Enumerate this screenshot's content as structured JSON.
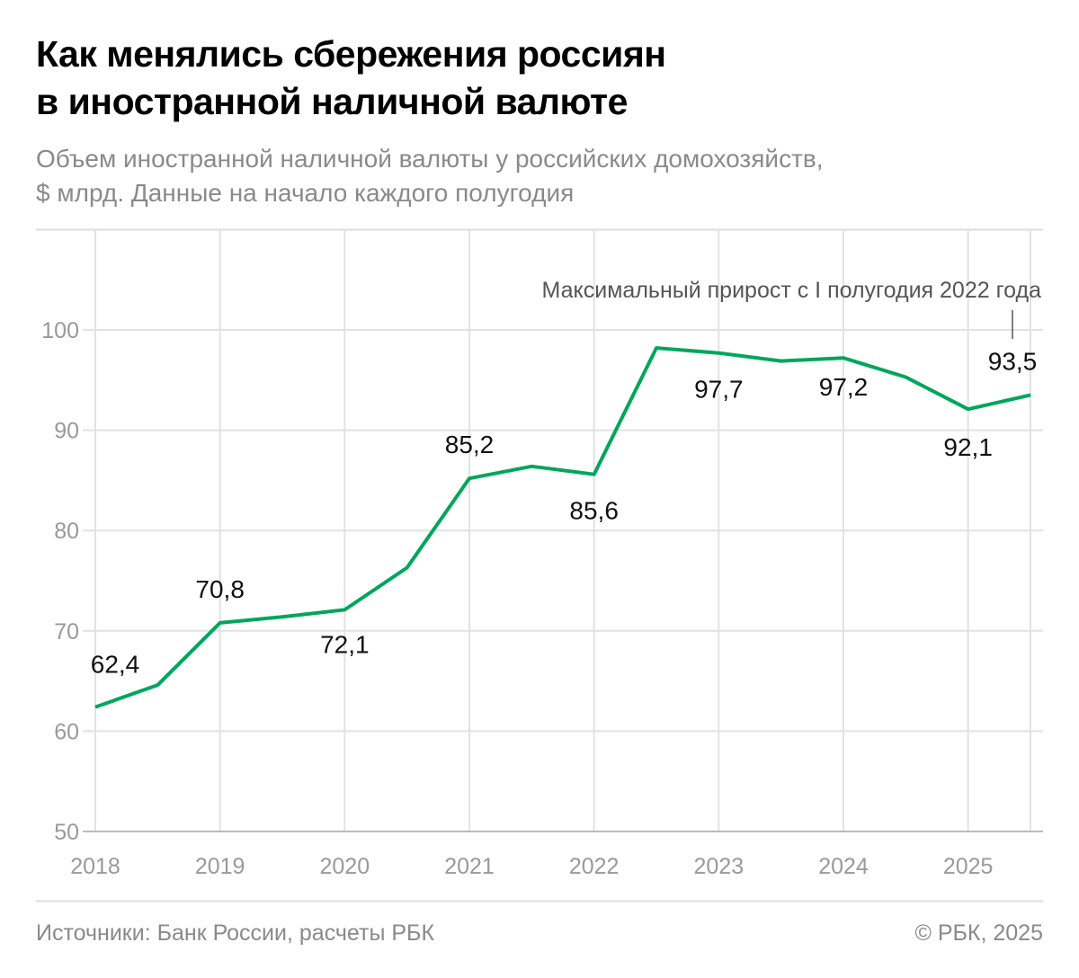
{
  "title_lines": [
    "Как менялись сбережения россиян",
    "в иностранной наличной валюте"
  ],
  "subtitle_lines": [
    "Объем иностранной наличной валюты у российских домохозяйств,",
    "$ млрд. Данные на начало каждого полугодия"
  ],
  "chart_data": {
    "type": "line",
    "x": [
      2018.0,
      2018.5,
      2019.0,
      2019.5,
      2020.0,
      2020.5,
      2021.0,
      2021.5,
      2022.0,
      2022.5,
      2023.0,
      2023.5,
      2024.0,
      2024.5,
      2025.0,
      2025.5
    ],
    "values": [
      62.4,
      64.6,
      70.8,
      71.4,
      72.1,
      76.3,
      85.2,
      86.4,
      85.6,
      98.2,
      97.7,
      96.9,
      97.2,
      95.3,
      92.1,
      93.5
    ],
    "data_labels": [
      {
        "x": 2018.0,
        "text": "62,4"
      },
      {
        "x": 2019.0,
        "text": "70,8"
      },
      {
        "x": 2020.0,
        "text": "72,1"
      },
      {
        "x": 2021.0,
        "text": "85,2"
      },
      {
        "x": 2022.0,
        "text": "85,6"
      },
      {
        "x": 2023.0,
        "text": "97,7"
      },
      {
        "x": 2024.0,
        "text": "97,2"
      },
      {
        "x": 2025.0,
        "text": "92,1"
      },
      {
        "x": 2025.5,
        "text": "93,5"
      }
    ],
    "x_ticks": [
      "2018",
      "2019",
      "2020",
      "2021",
      "2022",
      "2023",
      "2024",
      "2025"
    ],
    "y_ticks": [
      "50",
      "60",
      "70",
      "80",
      "90",
      "100"
    ],
    "ylim": [
      50,
      100
    ],
    "xlim": [
      2018,
      2025.5
    ],
    "grid": true,
    "annotation": "Максимальный прирост с I полугодия 2022 года",
    "line_color": "#00a65a"
  },
  "footer": {
    "source": "Источники: Банк России, расчеты РБК",
    "copyright": "© РБК, 2025"
  }
}
